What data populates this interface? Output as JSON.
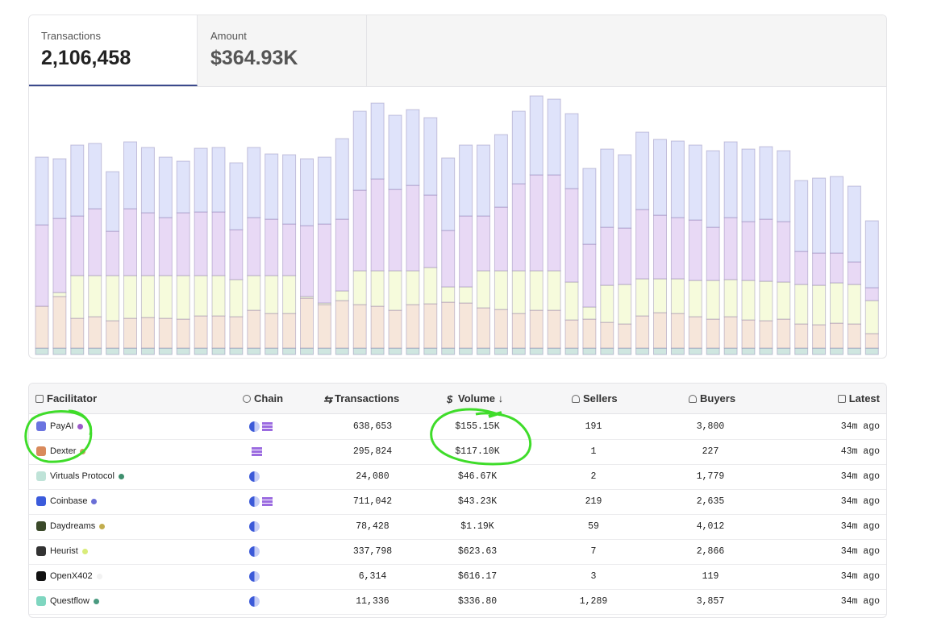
{
  "tabs": [
    {
      "label": "Transactions",
      "value": "2,106,458"
    },
    {
      "label": "Amount",
      "value": "$364.93K"
    }
  ],
  "chart_data": {
    "type": "bar",
    "stacked": true,
    "ylim": [
      0,
      330
    ],
    "categories": [
      null,
      null,
      null,
      null,
      null,
      null,
      null,
      null,
      null,
      null,
      null,
      null,
      null,
      null,
      null,
      null,
      null,
      null,
      null,
      null,
      null,
      null,
      null,
      null,
      null,
      null,
      null,
      null,
      null,
      null,
      null,
      null,
      null,
      null,
      null,
      null,
      null,
      null,
      null,
      null,
      null,
      null,
      null,
      null,
      null,
      null,
      null,
      null
    ],
    "series": [
      {
        "color": "#cfe6e0",
        "values": [
          8,
          8,
          8,
          8,
          8,
          8,
          8,
          8,
          8,
          8,
          8,
          8,
          8,
          8,
          8,
          8,
          8,
          8,
          8,
          8,
          8,
          8,
          8,
          8,
          8,
          8,
          8,
          8,
          8,
          8,
          8,
          8,
          8,
          8,
          8,
          8,
          8,
          8,
          8,
          8,
          8,
          8,
          8,
          8,
          8,
          8,
          8,
          8
        ]
      },
      {
        "color": "#f6e6da",
        "values": [
          52,
          64,
          37,
          39,
          34,
          37,
          38,
          37,
          36,
          40,
          40,
          39,
          47,
          43,
          43,
          62,
          54,
          59,
          54,
          52,
          47,
          54,
          55,
          57,
          56,
          50,
          48,
          43,
          47,
          47,
          35,
          36,
          32,
          30,
          40,
          44,
          43,
          39,
          36,
          39,
          35,
          34,
          36,
          30,
          29,
          31,
          30,
          18
        ]
      },
      {
        "color": "#f6fbdc",
        "values": [
          0,
          5,
          53,
          51,
          56,
          53,
          52,
          53,
          54,
          50,
          50,
          46,
          43,
          47,
          47,
          2,
          2,
          12,
          42,
          44,
          49,
          42,
          45,
          19,
          20,
          46,
          48,
          53,
          49,
          49,
          47,
          15,
          46,
          49,
          46,
          42,
          43,
          45,
          48,
          46,
          49,
          49,
          46,
          49,
          49,
          50,
          49,
          41
        ]
      },
      {
        "color": "#e8d9f5",
        "values": [
          101,
          92,
          74,
          83,
          55,
          83,
          78,
          72,
          78,
          79,
          79,
          62,
          72,
          70,
          64,
          88,
          98,
          89,
          100,
          114,
          101,
          106,
          90,
          70,
          88,
          68,
          79,
          108,
          119,
          119,
          116,
          78,
          72,
          70,
          86,
          79,
          76,
          75,
          66,
          77,
          73,
          77,
          75,
          41,
          40,
          37,
          28,
          16
        ]
      },
      {
        "color": "#dfe3fa",
        "values": [
          84,
          74,
          88,
          81,
          74,
          83,
          81,
          75,
          64,
          79,
          80,
          83,
          87,
          81,
          86,
          83,
          83,
          100,
          98,
          94,
          92,
          94,
          96,
          90,
          88,
          88,
          90,
          90,
          98,
          94,
          93,
          94,
          97,
          91,
          96,
          94,
          95,
          93,
          95,
          94,
          90,
          90,
          88,
          88,
          93,
          95,
          94,
          83
        ]
      }
    ]
  },
  "table": {
    "columns": [
      "Facilitator",
      "Chain",
      "Transactions",
      "Volume",
      "Sellers",
      "Buyers",
      "Latest"
    ],
    "rows": [
      {
        "name": "PayAI",
        "dot": "#9b59c9",
        "transactions": "638,653",
        "volume": "$155.15K",
        "sellers": "191",
        "buyers": "3,800",
        "latest": "34m ago"
      },
      {
        "name": "Dexter",
        "dot": "#c9a25a",
        "transactions": "295,824",
        "volume": "$117.10K",
        "sellers": "1",
        "buyers": "227",
        "latest": "43m ago"
      },
      {
        "name": "Virtuals Protocol",
        "dot": "#3f8f6e",
        "transactions": "24,080",
        "volume": "$46.67K",
        "sellers": "2",
        "buyers": "1,779",
        "latest": "34m ago"
      },
      {
        "name": "Coinbase",
        "dot": "#6a6fd6",
        "transactions": "711,042",
        "volume": "$43.23K",
        "sellers": "219",
        "buyers": "2,635",
        "latest": "34m ago"
      },
      {
        "name": "Daydreams",
        "dot": "#c2ad4e",
        "transactions": "78,428",
        "volume": "$1.19K",
        "sellers": "59",
        "buyers": "4,012",
        "latest": "34m ago"
      },
      {
        "name": "Heurist",
        "dot": "#d9ec7a",
        "transactions": "337,798",
        "volume": "$623.63",
        "sellers": "7",
        "buyers": "2,866",
        "latest": "34m ago"
      },
      {
        "name": "OpenX402",
        "dot": "#f2f2f2",
        "transactions": "6,314",
        "volume": "$616.17",
        "sellers": "3",
        "buyers": "119",
        "latest": "34m ago"
      },
      {
        "name": "Questflow",
        "dot": "#4a9a80",
        "transactions": "11,336",
        "volume": "$336.80",
        "sellers": "1,289",
        "buyers": "3,857",
        "latest": "34m ago"
      }
    ]
  }
}
